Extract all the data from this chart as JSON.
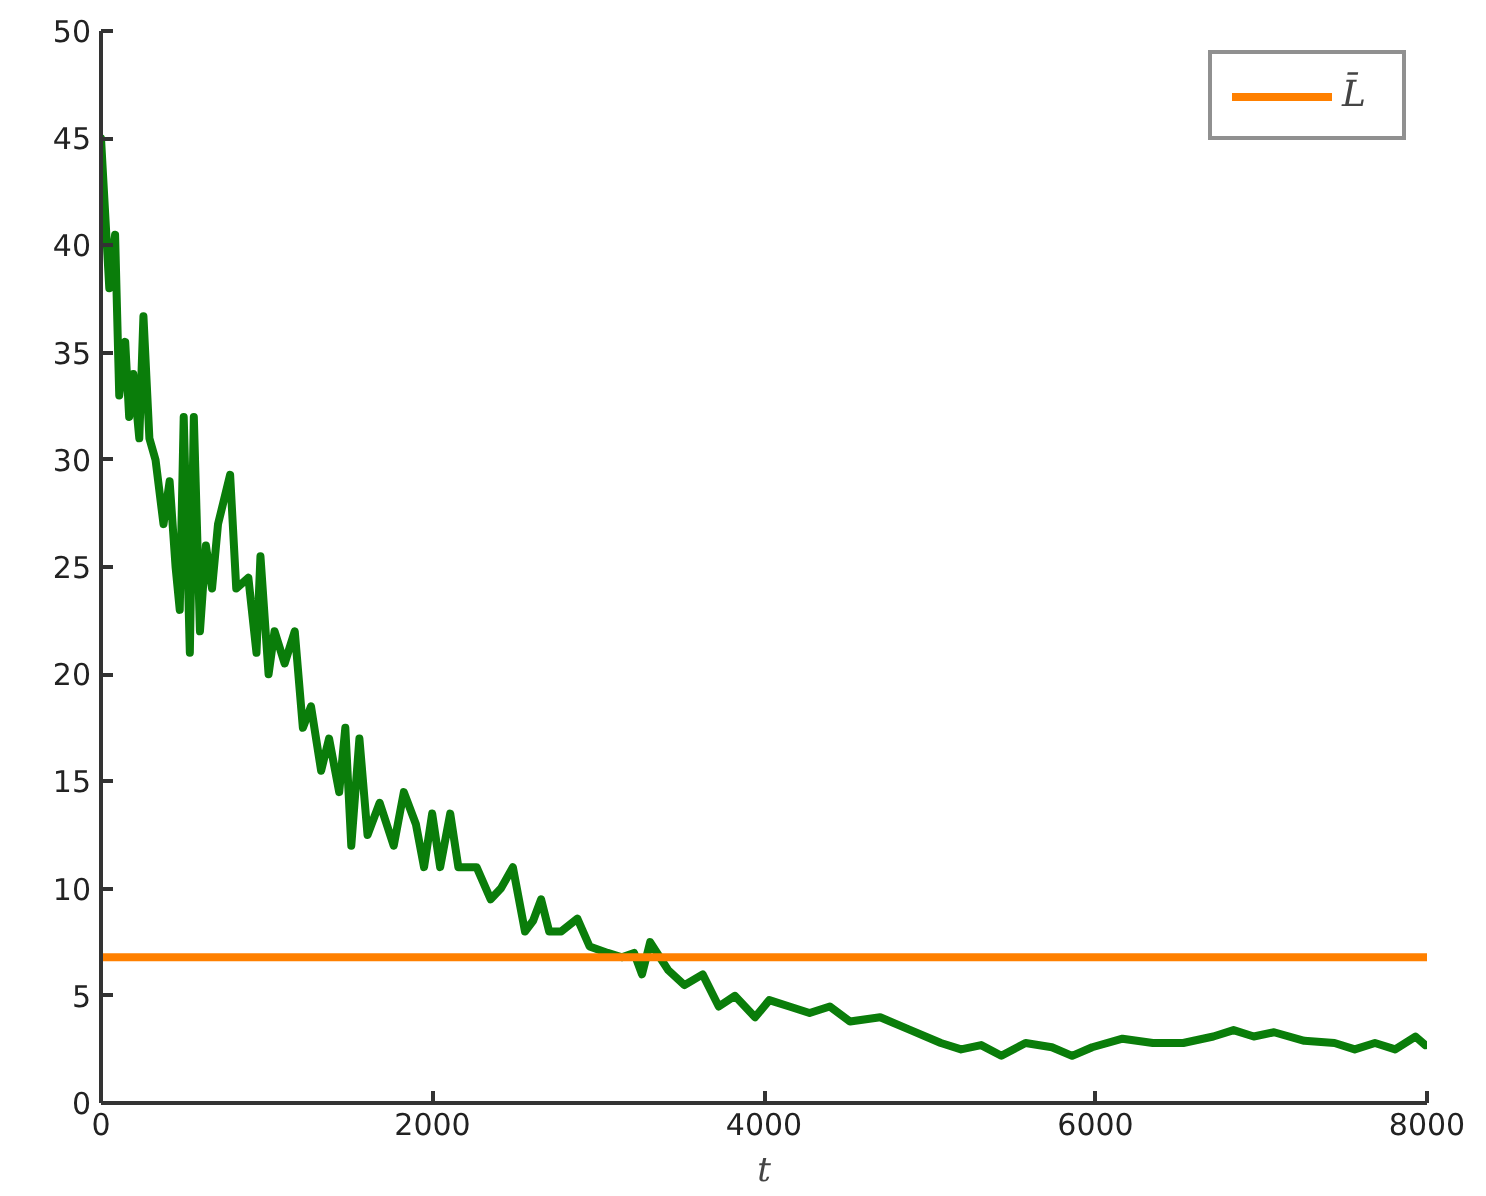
{
  "chart_data": {
    "type": "line",
    "xlabel": "t",
    "xlim": [
      0,
      8000
    ],
    "ylim": [
      0,
      50
    ],
    "xticks": [
      0,
      2000,
      4000,
      6000,
      8000
    ],
    "yticks": [
      0,
      5,
      10,
      15,
      20,
      25,
      30,
      35,
      40,
      45,
      50
    ],
    "grid": false,
    "legend": "top right",
    "marker": "none",
    "line_style": "solid",
    "series": [
      {
        "color": "#0a7d0a",
        "x": [
          0,
          50,
          85,
          110,
          146,
          170,
          195,
          231,
          256,
          292,
          329,
          377,
          414,
          450,
          475,
          499,
          536,
          560,
          597,
          633,
          670,
          706,
          779,
          816,
          889,
          938,
          962,
          1011,
          1047,
          1108,
          1169,
          1218,
          1267,
          1328,
          1376,
          1437,
          1474,
          1510,
          1559,
          1608,
          1681,
          1766,
          1827,
          1900,
          1949,
          1998,
          2046,
          2107,
          2156,
          2266,
          2351,
          2412,
          2485,
          2558,
          2607,
          2655,
          2704,
          2777,
          2874,
          2948,
          3057,
          3143,
          3216,
          3264,
          3313,
          3422,
          3520,
          3630,
          3727,
          3824,
          3946,
          4032,
          4153,
          4275,
          4397,
          4519,
          4701,
          4884,
          5067,
          5189,
          5310,
          5432,
          5578,
          5737,
          5859,
          5980,
          6163,
          6346,
          6529,
          6711,
          6833,
          6955,
          7077,
          7260,
          7442,
          7564,
          7686,
          7808,
          7930,
          7990
        ],
        "values": [
          45,
          38,
          40.5,
          33,
          35.5,
          32,
          34,
          31,
          36.7,
          31,
          30,
          27,
          29,
          25,
          23,
          32,
          21,
          32,
          22,
          26,
          24,
          27,
          29.3,
          24,
          24.5,
          21,
          25.5,
          20,
          22,
          20.5,
          22,
          17.5,
          18.5,
          15.5,
          17,
          14.5,
          17.5,
          12,
          17,
          12.5,
          14,
          12,
          14.5,
          13,
          11,
          13.5,
          11,
          13.5,
          11,
          11,
          9.5,
          10,
          11,
          8,
          8.5,
          9.5,
          8,
          8,
          8.6,
          7.3,
          7,
          6.8,
          7,
          6,
          7.5,
          6.2,
          5.5,
          6,
          4.5,
          5,
          4,
          4.8,
          4.5,
          4.2,
          4.5,
          3.8,
          4,
          3.4,
          2.8,
          2.5,
          2.7,
          2.2,
          2.8,
          2.6,
          2.2,
          2.6,
          3,
          2.8,
          2.8,
          3.1,
          3.4,
          3.1,
          3.3,
          2.9,
          2.8,
          2.5,
          2.8,
          2.5,
          3.1,
          2.7
        ]
      },
      {
        "name": "L̄",
        "color": "#ff8000",
        "x": [
          0,
          8000
        ],
        "values": [
          6.8,
          6.8
        ]
      }
    ]
  }
}
